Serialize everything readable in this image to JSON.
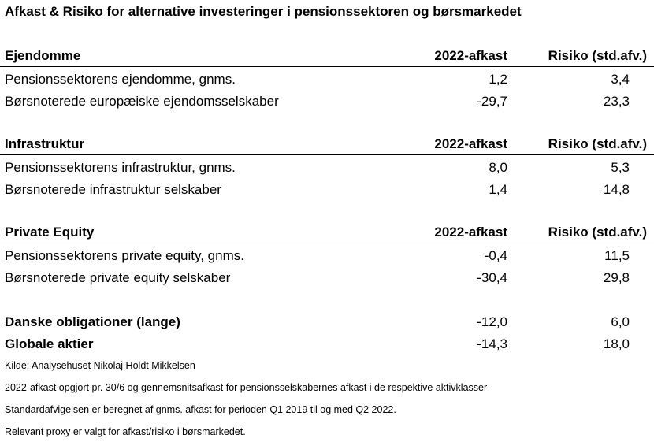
{
  "title": "Afkast & Risiko for alternative investeringer i pensionssektoren og børsmarkedet",
  "sections": [
    {
      "header": {
        "label": "Ejendomme",
        "col1": "2022-afkast",
        "col2": "Risiko (std.afv.)"
      },
      "rows": [
        {
          "label": "Pensionssektorens ejendomme, gnms.",
          "afkast": "1,2",
          "risiko": "3,4"
        },
        {
          "label": "Børsnoterede europæiske ejendomsselskaber",
          "afkast": "-29,7",
          "risiko": "23,3"
        }
      ]
    },
    {
      "header": {
        "label": "Infrastruktur",
        "col1": "2022-afkast",
        "col2": "Risiko (std.afv.)"
      },
      "rows": [
        {
          "label": "Pensionssektorens infrastruktur, gnms.",
          "afkast": "8,0",
          "risiko": "5,3"
        },
        {
          "label": "Børsnoterede infrastruktur selskaber",
          "afkast": "1,4",
          "risiko": "14,8"
        }
      ]
    },
    {
      "header": {
        "label": "Private Equity",
        "col1": "2022-afkast",
        "col2": "Risiko (std.afv.)"
      },
      "rows": [
        {
          "label": "Pensionssektorens private equity, gnms.",
          "afkast": "-0,4",
          "risiko": "11,5"
        },
        {
          "label": "Børsnoterede private equity selskaber",
          "afkast": "-30,4",
          "risiko": "29,8"
        }
      ]
    }
  ],
  "summary": [
    {
      "label": "Danske obligationer (lange)",
      "afkast": "-12,0",
      "risiko": "6,0"
    },
    {
      "label": "Globale aktier",
      "afkast": "-14,3",
      "risiko": "18,0"
    }
  ],
  "notes": [
    "Kilde: Analysehuset Nikolaj Holdt Mikkelsen",
    "2022-afkast opgjort pr. 30/6 og gennemsnitsafkast for pensionsselskabernes afkast i de respektive aktivklasser",
    "Standardafvigelsen er beregnet af gnms. afkast for perioden Q1 2019 til og med Q2 2022.",
    "Relevant proxy er valgt for afkast/risiko i børsmarkedet."
  ]
}
